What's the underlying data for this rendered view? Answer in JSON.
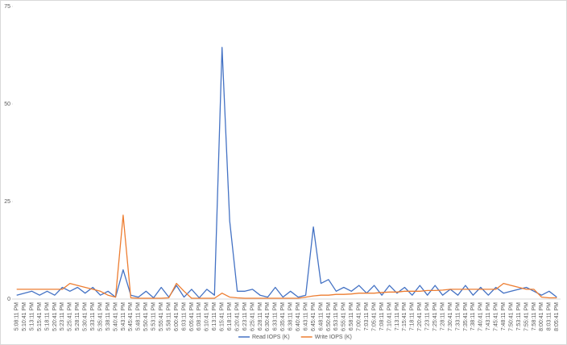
{
  "chart_data": {
    "type": "line",
    "categories": [
      "5:08:11 PM",
      "5:10:41 PM",
      "5:13:11 PM",
      "5:15:41 PM",
      "5:18:11 PM",
      "5:20:41 PM",
      "5:23:11 PM",
      "5:25:41 PM",
      "5:28:11 PM",
      "5:30:41 PM",
      "5:33:11 PM",
      "5:35:41 PM",
      "5:38:11 PM",
      "5:40:41 PM",
      "5:43:11 PM",
      "5:45:41 PM",
      "5:48:11 PM",
      "5:50:41 PM",
      "5:53:11 PM",
      "5:55:41 PM",
      "5:58:11 PM",
      "6:00:41 PM",
      "6:03:11 PM",
      "6:05:41 PM",
      "6:08:11 PM",
      "6:10:41 PM",
      "6:13:11 PM",
      "6:15:41 PM",
      "6:18:11 PM",
      "6:20:41 PM",
      "6:23:11 PM",
      "6:25:41 PM",
      "6:28:11 PM",
      "6:30:41 PM",
      "6:33:11 PM",
      "6:35:41 PM",
      "6:38:11 PM",
      "6:40:41 PM",
      "6:43:11 PM",
      "6:45:41 PM",
      "6:48:11 PM",
      "6:50:41 PM",
      "6:53:11 PM",
      "6:55:41 PM",
      "6:58:11 PM",
      "7:00:41 PM",
      "7:03:11 PM",
      "7:05:41 PM",
      "7:08:11 PM",
      "7:10:41 PM",
      "7:13:11 PM",
      "7:15:41 PM",
      "7:18:11 PM",
      "7:20:41 PM",
      "7:23:11 PM",
      "7:25:41 PM",
      "7:28:11 PM",
      "7:30:41 PM",
      "7:33:11 PM",
      "7:35:41 PM",
      "7:38:11 PM",
      "7:40:41 PM",
      "7:43:11 PM",
      "7:45:41 PM",
      "7:48:11 PM",
      "7:50:41 PM",
      "7:53:11 PM",
      "7:55:41 PM",
      "7:58:11 PM",
      "8:00:41 PM",
      "8:03:11 PM",
      "8:05:41 PM"
    ],
    "series": [
      {
        "name": "Read IOPS (K)",
        "color": "#4472c4",
        "values": [
          1,
          1.5,
          2,
          1,
          2,
          1,
          3,
          2,
          3,
          1.5,
          3,
          1,
          2,
          0.5,
          7.5,
          1,
          0.5,
          2,
          0.3,
          3,
          0.5,
          3.5,
          0.5,
          2.5,
          0.3,
          2.5,
          1,
          64.5,
          20,
          2,
          2,
          2.5,
          1,
          0.5,
          3,
          0.5,
          2,
          0.5,
          1,
          18.5,
          4,
          5,
          2,
          3,
          2,
          3.5,
          1.5,
          3.5,
          1,
          3.5,
          1.5,
          3,
          1,
          3.5,
          1,
          3.5,
          1,
          2.5,
          1,
          3.5,
          1,
          3,
          1,
          3,
          1.5,
          2,
          2.5,
          3,
          2,
          1,
          2,
          0.5
        ]
      },
      {
        "name": "Write IOPS (K)",
        "color": "#ed7d31",
        "values": [
          2.5,
          2.5,
          2.5,
          2.5,
          2.5,
          2.5,
          2.5,
          4,
          3.5,
          3,
          2.5,
          2,
          1,
          0.5,
          21.5,
          0.3,
          0.2,
          0.2,
          0.2,
          0.2,
          0.3,
          4,
          2,
          0.2,
          0.2,
          0.2,
          0.2,
          1.5,
          0.5,
          0.3,
          0.2,
          0.2,
          0.2,
          0.2,
          0.2,
          0.2,
          0.2,
          0.2,
          0.5,
          0.8,
          1,
          1,
          1.2,
          1.2,
          1.3,
          1.5,
          1.5,
          1.5,
          1.7,
          1.8,
          1.8,
          2,
          2,
          2,
          2.2,
          2.2,
          2.3,
          2.5,
          2.5,
          2.5,
          2.5,
          2.5,
          2.5,
          2.5,
          4,
          3.5,
          3,
          2.5,
          2.5,
          0.5,
          0.3,
          0.3
        ]
      }
    ],
    "ylim": [
      0,
      75
    ],
    "yticks": [
      0,
      25,
      50,
      75
    ],
    "legend": "bottom"
  }
}
